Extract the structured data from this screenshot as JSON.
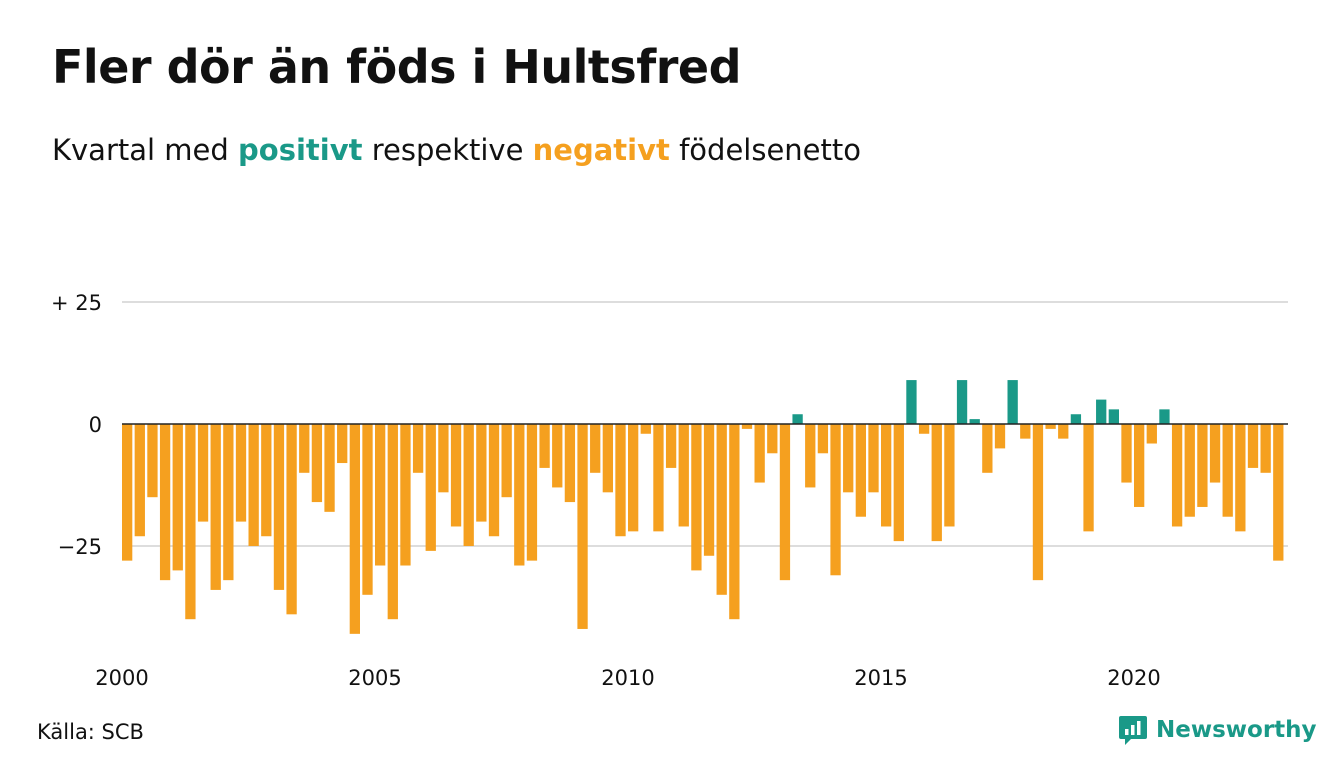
{
  "title": "Fler dör än föds i Hultsfred",
  "subtitle": {
    "before": "Kvartal med",
    "positive_word": "positivt",
    "middle": "respektive",
    "negative_word": "negativt",
    "after": "födelsenetto"
  },
  "source": "Källa: SCB",
  "brand": {
    "name": "Newsworthy",
    "icon": "newsworthy-logo-icon"
  },
  "colors": {
    "positive": "#1a9988",
    "negative": "#f5a01f",
    "grid": "#dddddd",
    "zero": "#222222"
  },
  "chart_data": {
    "type": "bar",
    "title": "Fler dör än föds i Hultsfred",
    "subtitle": "Kvartal med positivt respektive negativt födelsenetto",
    "xlabel": "",
    "ylabel": "",
    "ylim": [
      -45,
      30
    ],
    "y_ticks": [
      {
        "value": 25,
        "label": "+ 25"
      },
      {
        "value": 0,
        "label": "0"
      },
      {
        "value": -25,
        "label": "−25"
      }
    ],
    "x_ticks": [
      {
        "value": 2000,
        "label": "2000"
      },
      {
        "value": 2005,
        "label": "2005"
      },
      {
        "value": 2010,
        "label": "2010"
      },
      {
        "value": 2015,
        "label": "2015"
      },
      {
        "value": 2020,
        "label": "2020"
      }
    ],
    "x_start": "2000 Q1",
    "x_period": "quarter",
    "grid": true,
    "values": [
      -28,
      -23,
      -15,
      -32,
      -30,
      -40,
      -20,
      -34,
      -32,
      -20,
      -25,
      -23,
      -34,
      -39,
      -10,
      -16,
      -18,
      -8,
      -43,
      -35,
      -29,
      -40,
      -29,
      -10,
      -26,
      -14,
      -21,
      -25,
      -20,
      -23,
      -15,
      -29,
      -28,
      -9,
      -13,
      -16,
      -42,
      -10,
      -14,
      -23,
      -22,
      -2,
      -22,
      -9,
      -21,
      -30,
      -27,
      -35,
      -40,
      -1,
      -12,
      -6,
      -32,
      2,
      -13,
      -6,
      -31,
      -14,
      -19,
      -14,
      -21,
      -24,
      9,
      -2,
      -24,
      -21,
      9,
      1,
      -10,
      -5,
      9,
      -3,
      -32,
      -1,
      -3,
      2,
      -22,
      5,
      3,
      -12,
      -17,
      -4,
      3,
      -21,
      -19,
      -17,
      -12,
      -19,
      -22,
      -9,
      -10,
      -28
    ]
  }
}
